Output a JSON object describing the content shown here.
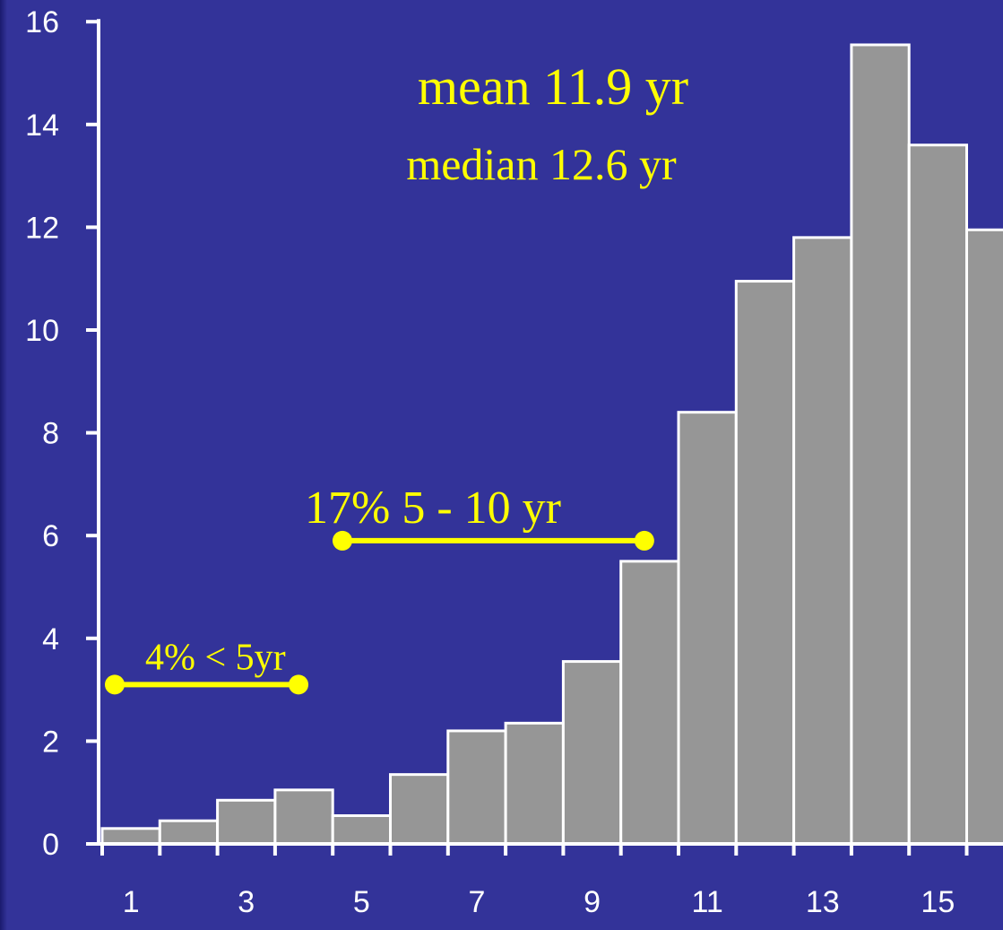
{
  "chart_data": {
    "type": "bar",
    "x_tick_labels": [
      "1",
      "3",
      "5",
      "7",
      "9",
      "11",
      "13",
      "15"
    ],
    "y_tick_labels": [
      "0",
      "2",
      "4",
      "6",
      "8",
      "10",
      "12",
      "14",
      "16"
    ],
    "categories": [
      1,
      2,
      3,
      4,
      5,
      6,
      7,
      8,
      9,
      10,
      11,
      12,
      13,
      14,
      15,
      16
    ],
    "values": [
      0.3,
      0.45,
      0.85,
      1.05,
      0.55,
      1.35,
      2.2,
      2.35,
      3.55,
      5.5,
      8.4,
      10.95,
      11.8,
      15.55,
      13.6,
      11.95
    ],
    "ylim": [
      0,
      16
    ],
    "annotations": {
      "mean": "mean 11.9 yr",
      "median": "median 12.6 yr",
      "range_5_10": "17%  5 - 10 yr",
      "range_lt5": "4% < 5yr"
    },
    "ranges": [
      {
        "label_key": "range_lt5",
        "x_start": 1,
        "x_end": 4.5,
        "y": 3.1
      },
      {
        "label_key": "range_5_10",
        "x_start": 4.95,
        "x_end": 10.5,
        "y": 5.9
      }
    ],
    "colors": {
      "background": "#333399",
      "bar_fill": "#969696",
      "bar_stroke": "#ffffff",
      "axis": "#ffffff",
      "annotation": "#ffff00"
    }
  }
}
